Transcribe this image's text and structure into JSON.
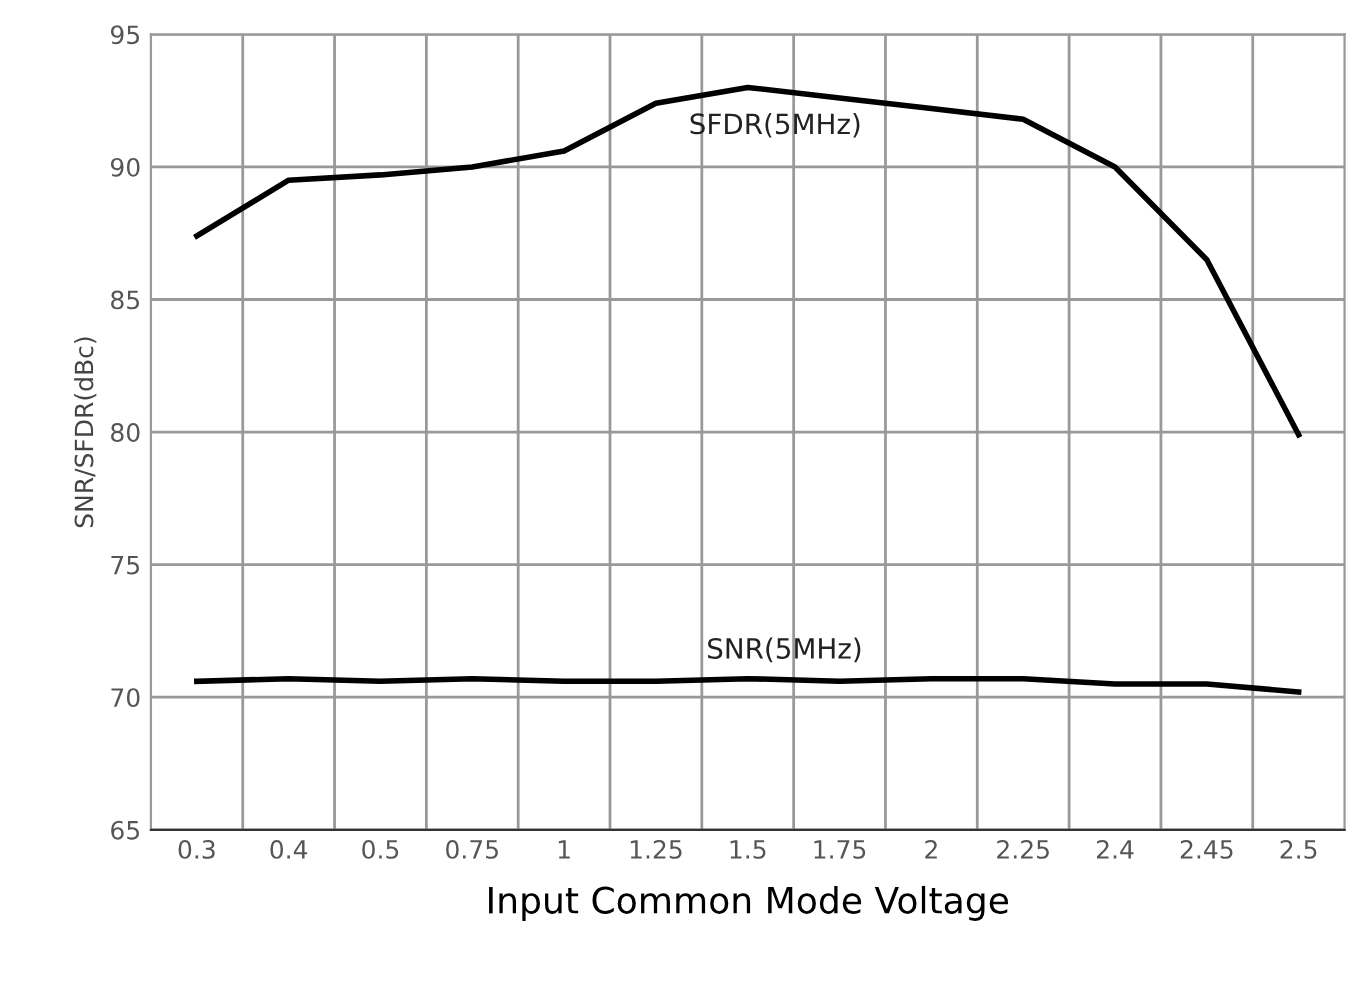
{
  "chart_data": {
    "type": "line",
    "xlabel": "Input Common Mode Voltage",
    "ylabel": "SNR/SFDR(dBc)",
    "categories": [
      "0.3",
      "0.4",
      "0.5",
      "0.75",
      "1",
      "1.25",
      "1.5",
      "1.75",
      "2",
      "2.25",
      "2.4",
      "2.45",
      "2.5"
    ],
    "series": [
      {
        "name": "SFDR(5MHz)",
        "color": "#000000",
        "values": [
          87.4,
          89.5,
          89.7,
          90.0,
          90.6,
          92.4,
          93.0,
          92.6,
          92.2,
          91.8,
          90.0,
          86.5,
          79.9
        ]
      },
      {
        "name": "SNR(5MHz)",
        "color": "#000000",
        "values": [
          70.6,
          70.7,
          70.6,
          70.7,
          70.6,
          70.6,
          70.7,
          70.6,
          70.7,
          70.7,
          70.5,
          70.5,
          70.2
        ]
      }
    ],
    "ylim": [
      65,
      95
    ],
    "yticks": [
      65,
      70,
      75,
      80,
      85,
      90,
      95
    ],
    "grid": true,
    "marker": "none",
    "line_style": "solid"
  }
}
